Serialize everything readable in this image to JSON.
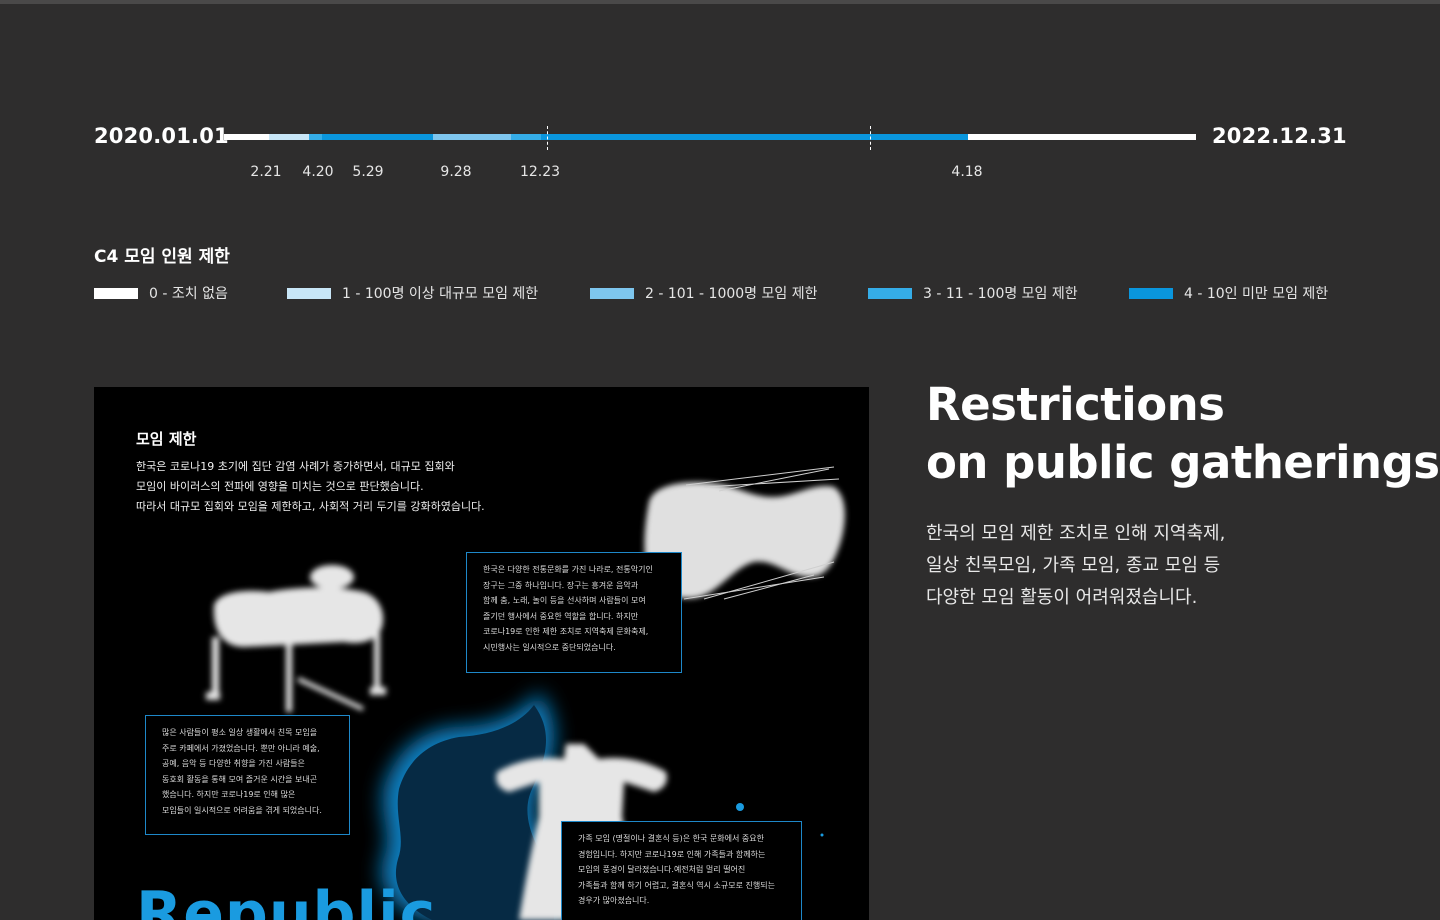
{
  "timeline": {
    "start_date": "2020.01.01",
    "end_date": "2022.12.31",
    "tick_labels": [
      {
        "text": "2.21",
        "key": "t221"
      },
      {
        "text": "4.20",
        "key": "t420"
      },
      {
        "text": "5.29",
        "key": "t529"
      },
      {
        "text": "9.28",
        "key": "t928"
      },
      {
        "text": "12.23",
        "key": "t1223"
      },
      {
        "text": "4.18",
        "key": "t418"
      }
    ],
    "segments": [
      {
        "from": "2020-02-21",
        "to": "2020-04-06",
        "level": 1
      },
      {
        "from": "2020-04-06",
        "to": "2020-04-20",
        "level": 3
      },
      {
        "from": "2020-04-20",
        "to": "2020-05-29",
        "level": 4
      },
      {
        "from": "2020-05-29",
        "to": "2020-08-23",
        "level": 4
      },
      {
        "from": "2020-08-23",
        "to": "2020-09-28",
        "level": 2
      },
      {
        "from": "2020-09-28",
        "to": "2020-11-19",
        "level": 2
      },
      {
        "from": "2020-11-19",
        "to": "2020-12-05",
        "level": 3
      },
      {
        "from": "2020-12-05",
        "to": "2020-12-23",
        "level": 3
      },
      {
        "from": "2020-12-23",
        "to": "2022-04-18",
        "level": 4
      }
    ]
  },
  "legend": {
    "title": "C4 모임 인원 제한",
    "items": [
      {
        "label": "0 - 조치 없음",
        "color": "#ffffff"
      },
      {
        "label": "1 - 100명 이상 대규모 모임 제한",
        "color": "#c8e6f7"
      },
      {
        "label": "2 - 101 - 1000명 모임 제한",
        "color": "#7ec6ee"
      },
      {
        "label": "3 - 11 - 100명 모임 제한",
        "color": "#35ade8"
      },
      {
        "label": "4 - 10인 미만 모임 제한",
        "color": "#0a96dd"
      }
    ]
  },
  "poster": {
    "title": "모임 제한",
    "body": [
      "한국은 코로나19 초기에 집단 감염 사례가 증가하면서, 대규모 집회와",
      "모임이 바이러스의 전파에 영향을 미치는 것으로 판단했습니다.",
      "따라서 대규모 집회와 모임을 제한하고, 사회적 거리 두기를 강화하였습니다."
    ],
    "box_1": [
      "한국은 다양한 전통문화를 가진 나라로, 전통악기인",
      "장구는 그중 하나입니다. 장구는 흥겨운 음악과",
      "함께 춤, 노래, 놀이 등을 선사하며 사람들이 모여",
      "즐기던 행사에서 중요한 역할을 합니다. 하지만",
      "코로나19로 인한 제한 조치로 지역축제 문화축제,",
      "시민행사는 일시적으로 중단되었습니다."
    ],
    "box_2": [
      "많은 사람들이 평소 일상 생활에서 친목 모임을",
      "주로 카페에서 가졌었습니다. 뿐만 아니라 예술,",
      "공예, 음악 등 다양한 취향을 가진 사람들은",
      "동호회 활동을 통해 모여 즐거운 시간을 보내곤",
      "했습니다. 하지만 코로나19로 인해 많은",
      "모임들이 일시적으로 어려움을 겪게 되었습니다."
    ],
    "box_3": [
      "가족 모임 (명절이나 결혼식 등)은 한국 문화에서 중요한",
      "경험입니다. 하지만 코로나19로 인해 가족들과 함께하는",
      "모임의 풍경이 달라졌습니다.예전처럼 멀리 떨어진",
      "가족들과 함께 하기 어렵고, 결혼식 역시 소규모로 진행되는",
      "경우가 많아졌습니다."
    ],
    "big_word": "Republic"
  },
  "right": {
    "headline": [
      "Restrictions",
      "on public gatherings"
    ],
    "description": [
      "한국의 모임 제한 조치로 인해 지역축제,",
      "일상 친목모임, 가족 모임, 종교 모임 등",
      "다양한 모임 활동이 어려워졌습니다."
    ]
  }
}
